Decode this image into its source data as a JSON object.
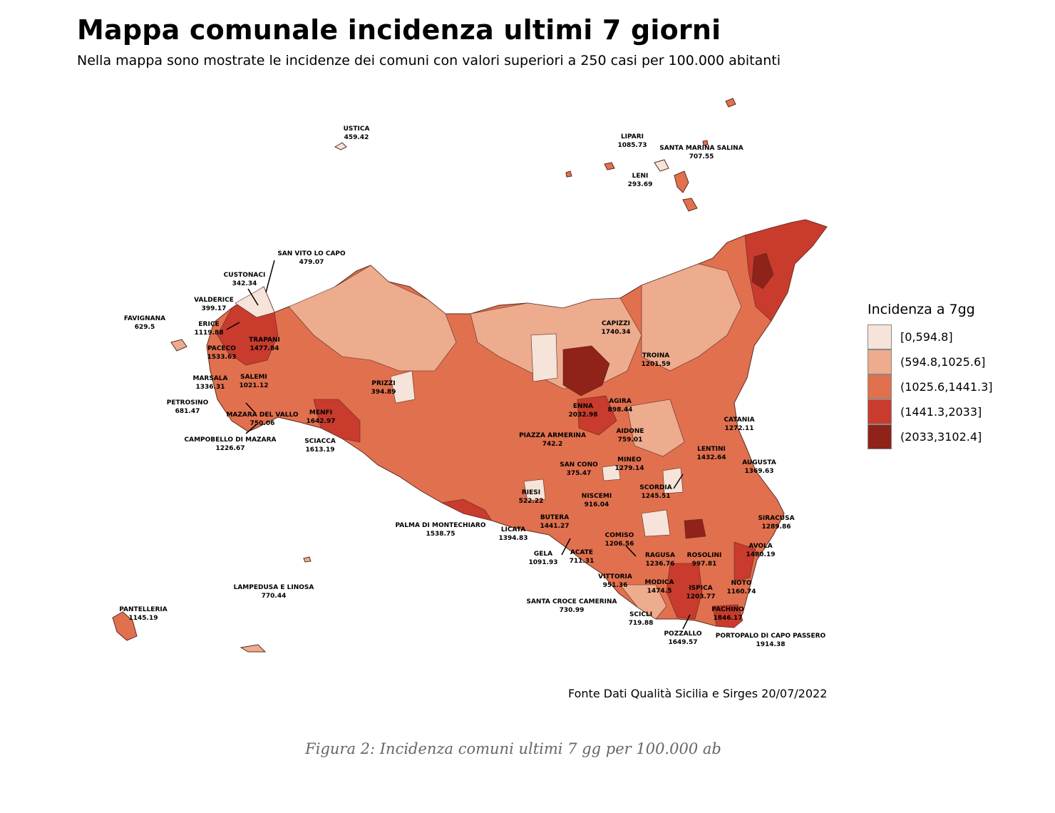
{
  "title": "Mappa comunale incidenza ultimi 7 giorni",
  "subtitle": "Nella mappa sono mostrate le incidenze dei comuni con valori superiori a 250 casi per 100.000 abitanti",
  "legend": {
    "title": "Incidenza a 7gg",
    "items": [
      {
        "label": "[0,594.8]",
        "color": "#f6e3da"
      },
      {
        "label": "(594.8,1025.6]",
        "color": "#ecac8d"
      },
      {
        "label": "(1025.6,1441.3]",
        "color": "#e1704e"
      },
      {
        "label": "(1441.3,2033]",
        "color": "#c83b2d"
      },
      {
        "label": "(2033,3102.4]",
        "color": "#8f2219"
      }
    ]
  },
  "source": "Fonte Dati Qualità Sicilia e Sirges 20/07/2022",
  "caption": "Figura 2: Incidenza comuni ultimi 7 gg per 100.000 ab",
  "comuni": [
    {
      "name": "USTICA",
      "value": "459.42"
    },
    {
      "name": "LIPARI",
      "value": "1085.73"
    },
    {
      "name": "SANTA MARINA SALINA",
      "value": "707.55"
    },
    {
      "name": "LENI",
      "value": "293.69"
    },
    {
      "name": "SAN VITO LO CAPO",
      "value": "479.07"
    },
    {
      "name": "CUSTONACI",
      "value": "342.34"
    },
    {
      "name": "VALDERICE",
      "value": "399.17"
    },
    {
      "name": "FAVIGNANA",
      "value": "629.5"
    },
    {
      "name": "ERICE",
      "value": "1119.88"
    },
    {
      "name": "TRAPANI",
      "value": "1477.84"
    },
    {
      "name": "PACECO",
      "value": "1533.63"
    },
    {
      "name": "MARSALA",
      "value": "1336.31"
    },
    {
      "name": "SALEMI",
      "value": "1021.12"
    },
    {
      "name": "PETROSINO",
      "value": "681.47"
    },
    {
      "name": "MAZARA DEL VALLO",
      "value": "750.06"
    },
    {
      "name": "MENFI",
      "value": "1642.97"
    },
    {
      "name": "CAMPOBELLO DI MAZARA",
      "value": "1226.67"
    },
    {
      "name": "SCIACCA",
      "value": "1613.19"
    },
    {
      "name": "PRIZZI",
      "value": "394.89"
    },
    {
      "name": "CAPIZZI",
      "value": "1740.34"
    },
    {
      "name": "TROINA",
      "value": "1201.59"
    },
    {
      "name": "ENNA",
      "value": "2032.98"
    },
    {
      "name": "AGIRA",
      "value": "898.44"
    },
    {
      "name": "AIDONE",
      "value": "759.01"
    },
    {
      "name": "PIAZZA ARMERINA",
      "value": "742.2"
    },
    {
      "name": "CATANIA",
      "value": "1272.11"
    },
    {
      "name": "LENTINI",
      "value": "1432.64"
    },
    {
      "name": "AUGUSTA",
      "value": "1369.63"
    },
    {
      "name": "SAN CONO",
      "value": "375.47"
    },
    {
      "name": "MINEO",
      "value": "1279.14"
    },
    {
      "name": "SCORDIA",
      "value": "1245.51"
    },
    {
      "name": "RIESI",
      "value": "522.22"
    },
    {
      "name": "NISCEMI",
      "value": "916.04"
    },
    {
      "name": "BUTERA",
      "value": "1441.27"
    },
    {
      "name": "PALMA DI MONTECHIARO",
      "value": "1538.75"
    },
    {
      "name": "LICATA",
      "value": "1394.83"
    },
    {
      "name": "SIRACUSA",
      "value": "1289.86"
    },
    {
      "name": "COMISO",
      "value": "1206.56"
    },
    {
      "name": "GELA",
      "value": "1091.93"
    },
    {
      "name": "ACATE",
      "value": "711.31"
    },
    {
      "name": "RAGUSA",
      "value": "1236.76"
    },
    {
      "name": "ROSOLINI",
      "value": "997.81"
    },
    {
      "name": "AVOLA",
      "value": "1480.19"
    },
    {
      "name": "VITTORIA",
      "value": "951.36"
    },
    {
      "name": "MODICA",
      "value": "1474.5"
    },
    {
      "name": "ISPICA",
      "value": "1203.77"
    },
    {
      "name": "NOTO",
      "value": "1160.74"
    },
    {
      "name": "SANTA CROCE CAMERINA",
      "value": "730.99"
    },
    {
      "name": "PACHINO",
      "value": "1846.17"
    },
    {
      "name": "SCICLI",
      "value": "719.88"
    },
    {
      "name": "POZZALLO",
      "value": "1649.57"
    },
    {
      "name": "PORTOPALO DI CAPO PASSERO",
      "value": "1914.38"
    },
    {
      "name": "LAMPEDUSA E LINOSA",
      "value": "770.44"
    },
    {
      "name": "PANTELLERIA",
      "value": "1145.19"
    }
  ]
}
